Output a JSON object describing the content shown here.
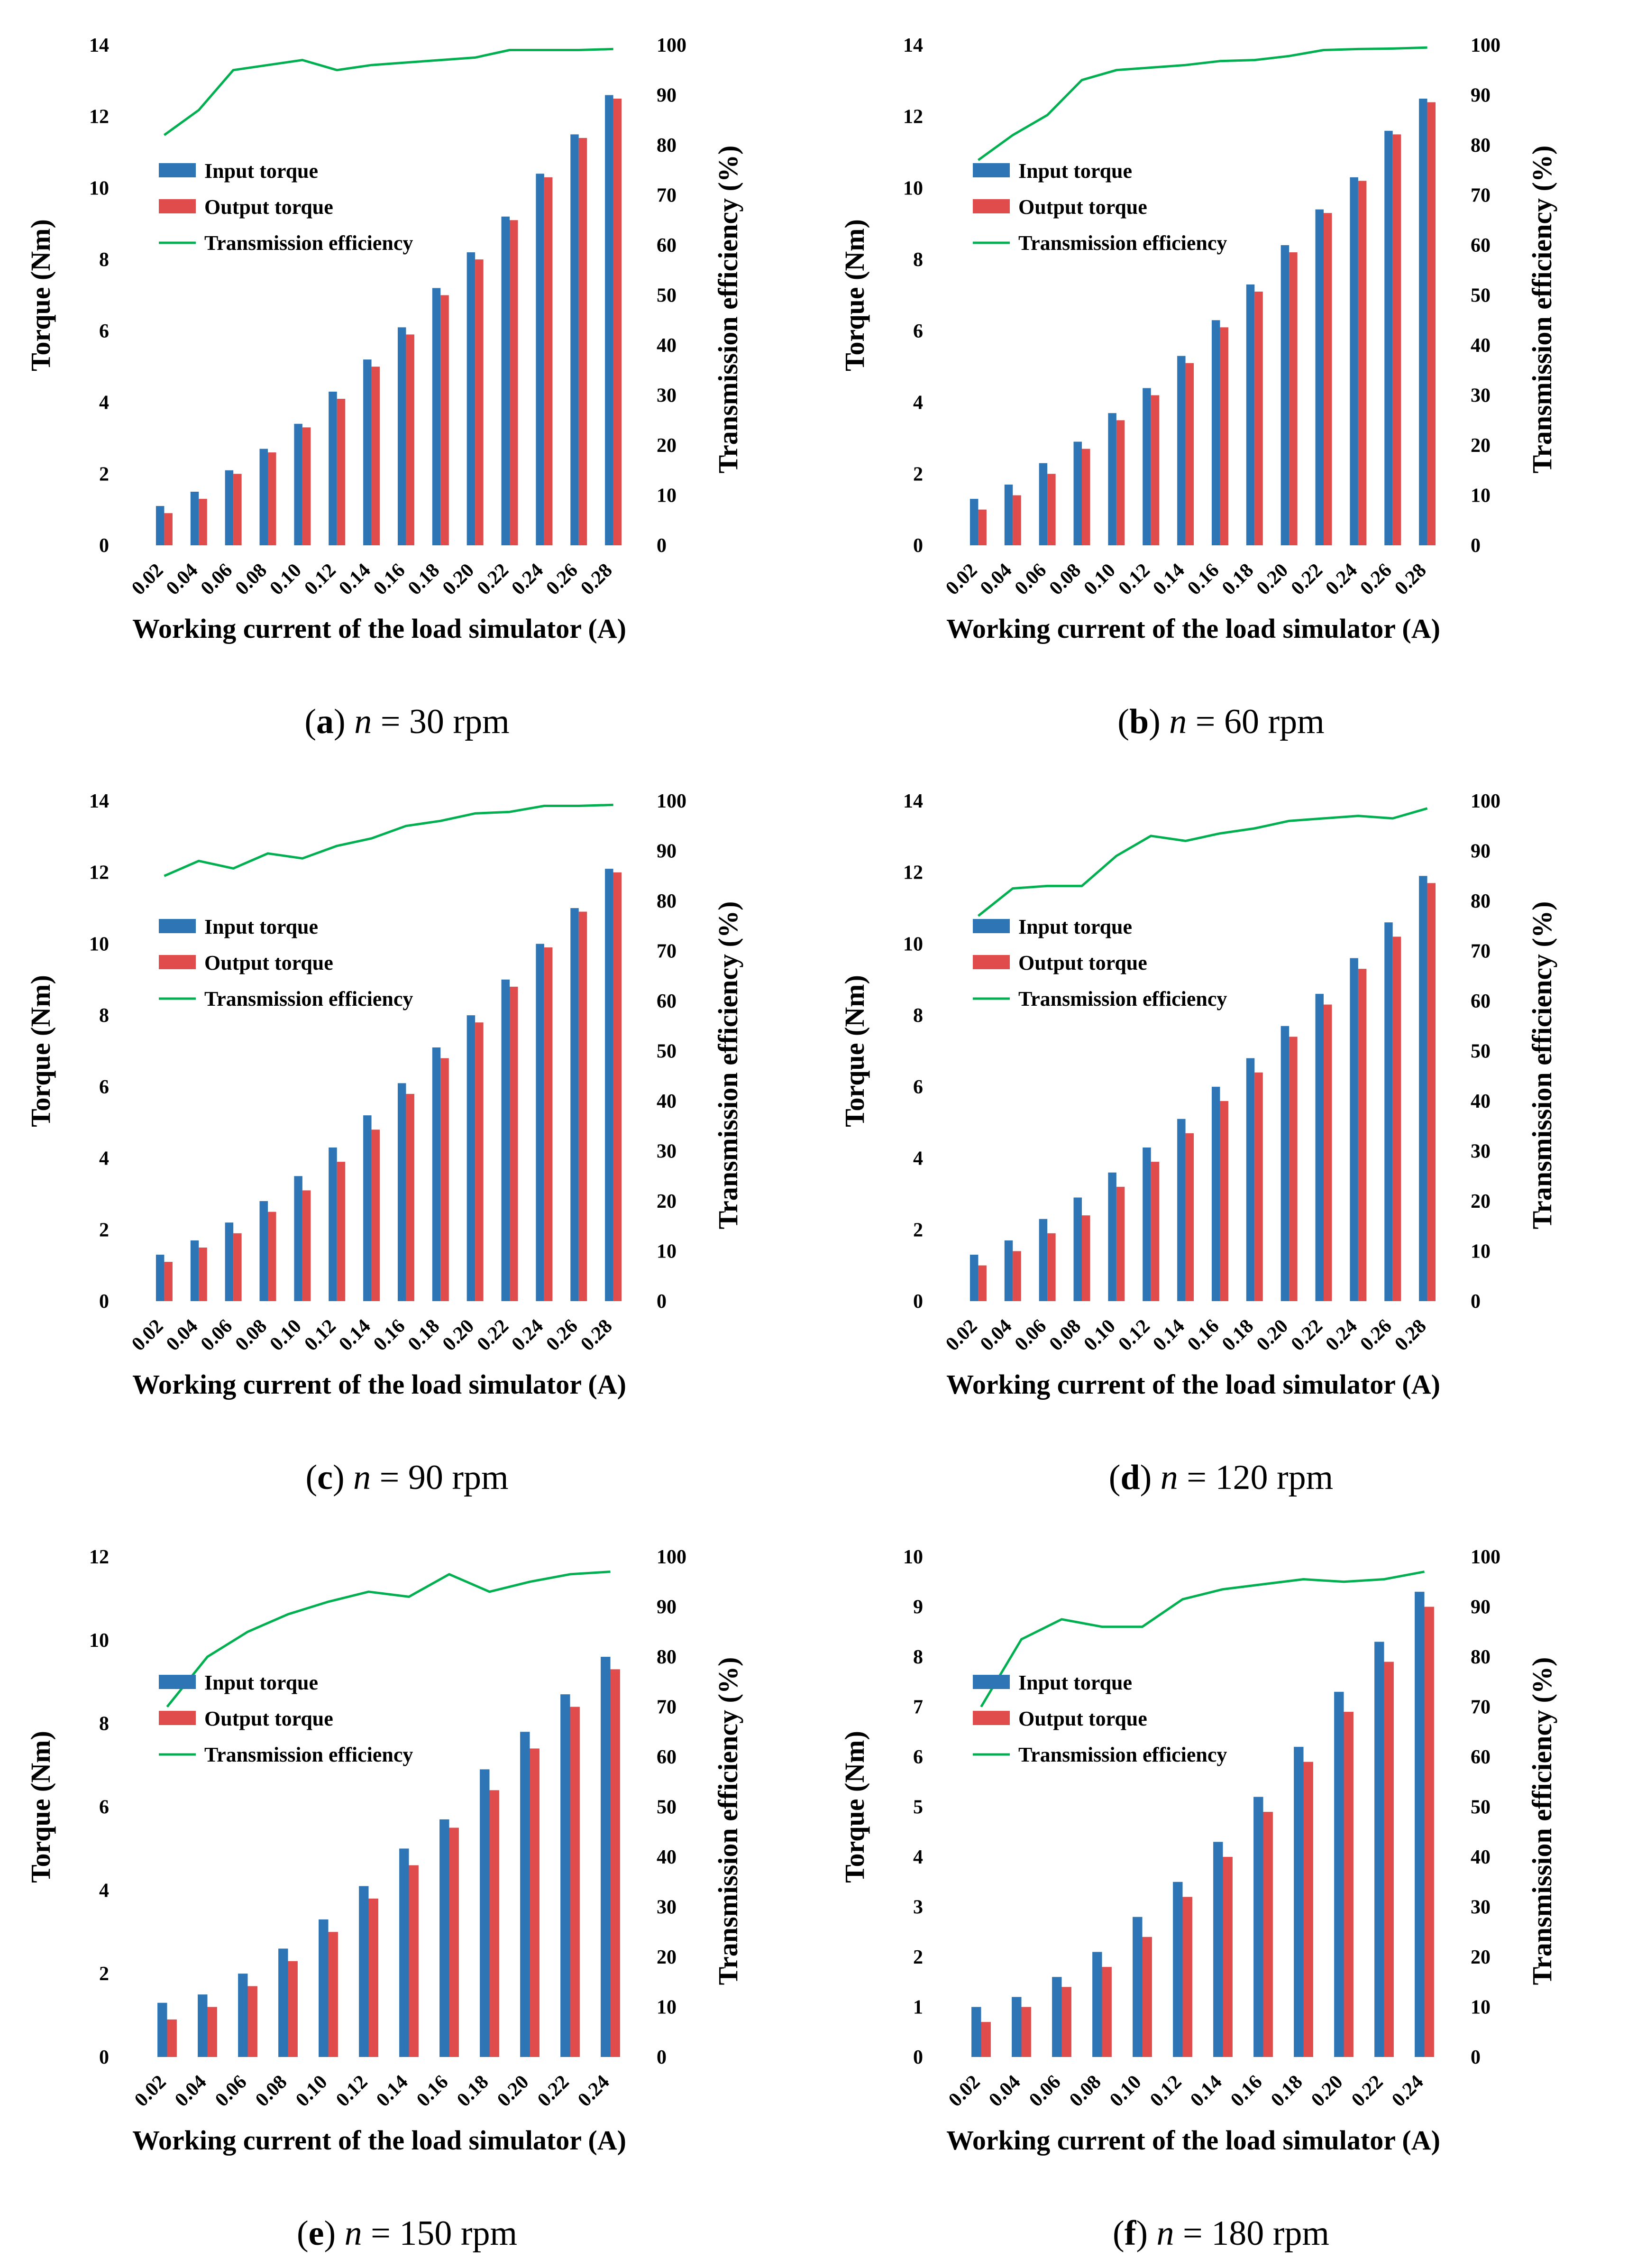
{
  "figure": {
    "colors": {
      "input": "#2e75b6",
      "output": "#e04b4b",
      "efficiency": "#00b050"
    },
    "legend": [
      "Input torque",
      "Output torque",
      "Transmission efficiency"
    ],
    "xlabel": "Working current of the load simulator (A)",
    "ylabel_left": "Torque (Nm)",
    "ylabel_right": "Transmission efficiency (%)"
  },
  "chart_data": [
    {
      "type": "bar",
      "id": "a",
      "caption": {
        "letter": "a",
        "n": "n",
        "rest": " = 30 rpm"
      },
      "categories": [
        "0.02",
        "0.04",
        "0.06",
        "0.08",
        "0.10",
        "0.12",
        "0.14",
        "0.16",
        "0.18",
        "0.20",
        "0.22",
        "0.24",
        "0.26",
        "0.28"
      ],
      "series": [
        {
          "name": "Input torque",
          "values": [
            1.1,
            1.5,
            2.1,
            2.7,
            3.4,
            4.3,
            5.2,
            6.1,
            7.2,
            8.2,
            9.2,
            10.4,
            11.5,
            12.6
          ]
        },
        {
          "name": "Output torque",
          "values": [
            0.9,
            1.3,
            2.0,
            2.6,
            3.3,
            4.1,
            5.0,
            5.9,
            7.0,
            8.0,
            9.1,
            10.3,
            11.4,
            12.5
          ]
        },
        {
          "name": "Transmission efficiency",
          "axis": "right",
          "type": "line",
          "values": [
            82,
            87,
            95,
            96,
            97,
            95,
            96,
            96.5,
            97,
            97.5,
            99,
            99,
            99,
            99.2
          ]
        }
      ],
      "ylim_left": [
        0,
        14
      ],
      "yticks_left": [
        "0",
        "2",
        "4",
        "6",
        "8",
        "10",
        "12",
        "14"
      ],
      "ylim_right": [
        0,
        100
      ],
      "yticks_right": [
        "0",
        "10",
        "20",
        "30",
        "40",
        "50",
        "60",
        "70",
        "80",
        "90",
        "100"
      ],
      "xlabel": "Working current of the load simulator (A)",
      "ylabel": "Torque (Nm)",
      "ylabel_right": "Transmission efficiency (%)"
    },
    {
      "type": "bar",
      "id": "b",
      "caption": {
        "letter": "b",
        "n": "n",
        "rest": " = 60 rpm"
      },
      "categories": [
        "0.02",
        "0.04",
        "0.06",
        "0.08",
        "0.10",
        "0.12",
        "0.14",
        "0.16",
        "0.18",
        "0.20",
        "0.22",
        "0.24",
        "0.26",
        "0.28"
      ],
      "series": [
        {
          "name": "Input torque",
          "values": [
            1.3,
            1.7,
            2.3,
            2.9,
            3.7,
            4.4,
            5.3,
            6.3,
            7.3,
            8.4,
            9.4,
            10.3,
            11.6,
            12.5
          ]
        },
        {
          "name": "Output torque",
          "values": [
            1.0,
            1.4,
            2.0,
            2.7,
            3.5,
            4.2,
            5.1,
            6.1,
            7.1,
            8.2,
            9.3,
            10.2,
            11.5,
            12.4
          ]
        },
        {
          "name": "Transmission efficiency",
          "axis": "right",
          "type": "line",
          "values": [
            77,
            82,
            86,
            93,
            95,
            95.5,
            96,
            96.8,
            97,
            97.8,
            99,
            99.2,
            99.3,
            99.5
          ]
        }
      ],
      "ylim_left": [
        0,
        14
      ],
      "yticks_left": [
        "0",
        "2",
        "4",
        "6",
        "8",
        "10",
        "12",
        "14"
      ],
      "ylim_right": [
        0,
        100
      ],
      "yticks_right": [
        "0",
        "10",
        "20",
        "30",
        "40",
        "50",
        "60",
        "70",
        "80",
        "90",
        "100"
      ],
      "xlabel": "Working current of the load simulator (A)",
      "ylabel": "Torque (Nm)",
      "ylabel_right": "Transmission efficiency (%)"
    },
    {
      "type": "bar",
      "id": "c",
      "caption": {
        "letter": "c",
        "n": "n",
        "rest": " = 90 rpm"
      },
      "categories": [
        "0.02",
        "0.04",
        "0.06",
        "0.08",
        "0.10",
        "0.12",
        "0.14",
        "0.16",
        "0.18",
        "0.20",
        "0.22",
        "0.24",
        "0.26",
        "0.28"
      ],
      "series": [
        {
          "name": "Input torque",
          "values": [
            1.3,
            1.7,
            2.2,
            2.8,
            3.5,
            4.3,
            5.2,
            6.1,
            7.1,
            8.0,
            9.0,
            10.0,
            11.0,
            12.1
          ]
        },
        {
          "name": "Output torque",
          "values": [
            1.1,
            1.5,
            1.9,
            2.5,
            3.1,
            3.9,
            4.8,
            5.8,
            6.8,
            7.8,
            8.8,
            9.9,
            10.9,
            12.0
          ]
        },
        {
          "name": "Transmission efficiency",
          "axis": "right",
          "type": "line",
          "values": [
            85,
            88,
            86.5,
            89.5,
            88.5,
            91,
            92.5,
            95,
            96,
            97.5,
            97.8,
            99,
            99,
            99.2
          ]
        }
      ],
      "ylim_left": [
        0,
        14
      ],
      "yticks_left": [
        "0",
        "2",
        "4",
        "6",
        "8",
        "10",
        "12",
        "14"
      ],
      "ylim_right": [
        0,
        100
      ],
      "yticks_right": [
        "0",
        "10",
        "20",
        "30",
        "40",
        "50",
        "60",
        "70",
        "80",
        "90",
        "100"
      ],
      "xlabel": "Working current of the load simulator (A)",
      "ylabel": "Torque (Nm)",
      "ylabel_right": "Transmission efficiency (%)"
    },
    {
      "type": "bar",
      "id": "d",
      "caption": {
        "letter": "d",
        "n": "n",
        "rest": " = 120 rpm"
      },
      "categories": [
        "0.02",
        "0.04",
        "0.06",
        "0.08",
        "0.10",
        "0.12",
        "0.14",
        "0.16",
        "0.18",
        "0.20",
        "0.22",
        "0.24",
        "0.26",
        "0.28"
      ],
      "series": [
        {
          "name": "Input torque",
          "values": [
            1.3,
            1.7,
            2.3,
            2.9,
            3.6,
            4.3,
            5.1,
            6.0,
            6.8,
            7.7,
            8.6,
            9.6,
            10.6,
            11.9
          ]
        },
        {
          "name": "Output torque",
          "values": [
            1.0,
            1.4,
            1.9,
            2.4,
            3.2,
            3.9,
            4.7,
            5.6,
            6.4,
            7.4,
            8.3,
            9.3,
            10.2,
            11.7
          ]
        },
        {
          "name": "Transmission efficiency",
          "axis": "right",
          "type": "line",
          "values": [
            77,
            82.5,
            83,
            83,
            89,
            93,
            92,
            93.5,
            94.5,
            96,
            96.5,
            97,
            96.5,
            98.5
          ]
        }
      ],
      "ylim_left": [
        0,
        14
      ],
      "yticks_left": [
        "0",
        "2",
        "4",
        "6",
        "8",
        "10",
        "12",
        "14"
      ],
      "ylim_right": [
        0,
        100
      ],
      "yticks_right": [
        "0",
        "10",
        "20",
        "30",
        "40",
        "50",
        "60",
        "70",
        "80",
        "90",
        "100"
      ],
      "xlabel": "Working current of the load simulator (A)",
      "ylabel": "Torque (Nm)",
      "ylabel_right": "Transmission efficiency (%)"
    },
    {
      "type": "bar",
      "id": "e",
      "caption": {
        "letter": "e",
        "n": "n",
        "rest": " = 150 rpm"
      },
      "categories": [
        "0.02",
        "0.04",
        "0.06",
        "0.08",
        "0.10",
        "0.12",
        "0.14",
        "0.16",
        "0.18",
        "0.20",
        "0.22",
        "0.24"
      ],
      "series": [
        {
          "name": "Input torque",
          "values": [
            1.3,
            1.5,
            2.0,
            2.6,
            3.3,
            4.1,
            5.0,
            5.7,
            6.9,
            7.8,
            8.7,
            9.6
          ]
        },
        {
          "name": "Output torque",
          "values": [
            0.9,
            1.2,
            1.7,
            2.3,
            3.0,
            3.8,
            4.6,
            5.5,
            6.4,
            7.4,
            8.4,
            9.3
          ]
        },
        {
          "name": "Transmission efficiency",
          "axis": "right",
          "type": "line",
          "values": [
            70,
            80,
            85,
            88.5,
            91,
            93,
            92,
            96.5,
            93,
            95,
            96.5,
            97
          ]
        }
      ],
      "ylim_left": [
        0,
        12
      ],
      "yticks_left": [
        "0",
        "2",
        "4",
        "6",
        "8",
        "10",
        "12"
      ],
      "ylim_right": [
        0,
        100
      ],
      "yticks_right": [
        "0",
        "10",
        "20",
        "30",
        "40",
        "50",
        "60",
        "70",
        "80",
        "90",
        "100"
      ],
      "xlabel": "Working current of the load simulator (A)",
      "ylabel": "Torque (Nm)",
      "ylabel_right": "Transmission efficiency (%)"
    },
    {
      "type": "bar",
      "id": "f",
      "caption": {
        "letter": "f",
        "n": "n",
        "rest": " = 180 rpm"
      },
      "categories": [
        "0.02",
        "0.04",
        "0.06",
        "0.08",
        "0.10",
        "0.12",
        "0.14",
        "0.16",
        "0.18",
        "0.20",
        "0.22",
        "0.24"
      ],
      "series": [
        {
          "name": "Input torque",
          "values": [
            1.0,
            1.2,
            1.6,
            2.1,
            2.8,
            3.5,
            4.3,
            5.2,
            6.2,
            7.3,
            8.3,
            9.3
          ]
        },
        {
          "name": "Output torque",
          "values": [
            0.7,
            1.0,
            1.4,
            1.8,
            2.4,
            3.2,
            4.0,
            4.9,
            5.9,
            6.9,
            7.9,
            9.0
          ]
        },
        {
          "name": "Transmission efficiency",
          "axis": "right",
          "type": "line",
          "values": [
            70,
            83.5,
            87.5,
            86,
            86,
            91.5,
            93.5,
            94.5,
            95.5,
            95,
            95.5,
            97
          ]
        }
      ],
      "ylim_left": [
        0,
        10
      ],
      "yticks_left": [
        "0",
        "1",
        "2",
        "3",
        "4",
        "5",
        "6",
        "7",
        "8",
        "9",
        "10"
      ],
      "ylim_right": [
        0,
        100
      ],
      "yticks_right": [
        "0",
        "10",
        "20",
        "30",
        "40",
        "50",
        "60",
        "70",
        "80",
        "90",
        "100"
      ],
      "xlabel": "Working current of the load simulator (A)",
      "ylabel": "Torque (Nm)",
      "ylabel_right": "Transmission efficiency (%)"
    }
  ]
}
